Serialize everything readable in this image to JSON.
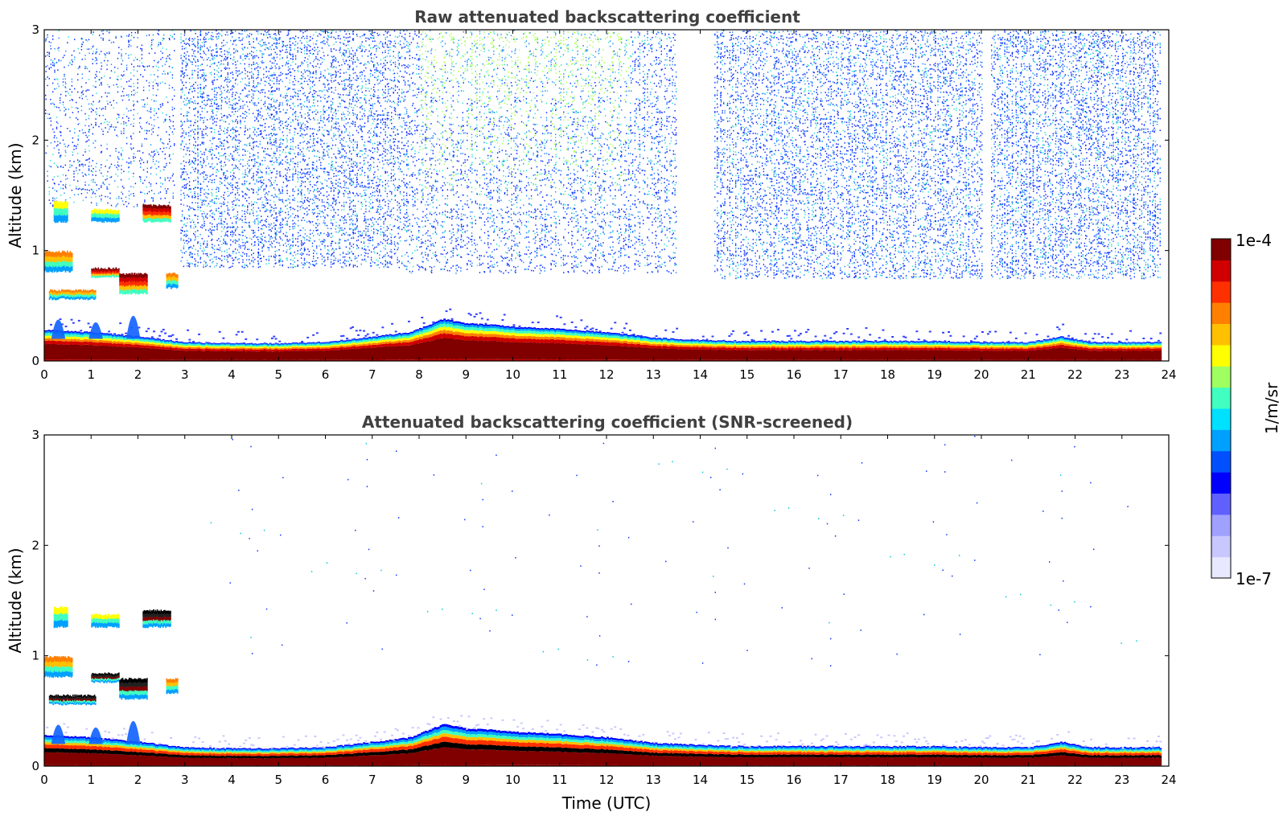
{
  "chart_data": [
    {
      "type": "heatmap",
      "title": "Raw attenuated backscattering coefficient",
      "xlabel": "",
      "ylabel": "Altitude (km)",
      "xlim": [
        0,
        24
      ],
      "ylim": [
        0,
        3
      ],
      "x_ticks": [
        "0",
        "1",
        "2",
        "3",
        "4",
        "5",
        "6",
        "7",
        "8",
        "9",
        "10",
        "11",
        "12",
        "13",
        "14",
        "15",
        "16",
        "17",
        "18",
        "19",
        "20",
        "21",
        "22",
        "23",
        "24"
      ],
      "y_ticks": [
        "0",
        "1",
        "2",
        "3"
      ],
      "screened": false,
      "boundary_layer_top_km": [
        [
          0,
          0.28
        ],
        [
          1,
          0.26
        ],
        [
          2,
          0.22
        ],
        [
          3,
          0.17
        ],
        [
          4,
          0.16
        ],
        [
          5,
          0.16
        ],
        [
          6,
          0.17
        ],
        [
          7,
          0.22
        ],
        [
          7.8,
          0.26
        ],
        [
          8.5,
          0.38
        ],
        [
          9,
          0.34
        ],
        [
          9.5,
          0.33
        ],
        [
          10,
          0.31
        ],
        [
          11,
          0.29
        ],
        [
          12,
          0.26
        ],
        [
          13,
          0.21
        ],
        [
          14,
          0.19
        ],
        [
          15,
          0.18
        ],
        [
          16,
          0.18
        ],
        [
          17,
          0.18
        ],
        [
          18,
          0.18
        ],
        [
          19,
          0.18
        ],
        [
          20,
          0.17
        ],
        [
          21,
          0.17
        ],
        [
          21.7,
          0.22
        ],
        [
          22.3,
          0.17
        ],
        [
          23,
          0.17
        ],
        [
          23.8,
          0.17
        ]
      ],
      "clouds": [
        {
          "t0": 0.0,
          "t1": 0.6,
          "alt0_km": 0.8,
          "alt1_km": 1.0,
          "level": "high"
        },
        {
          "t0": 0.2,
          "t1": 0.5,
          "alt0_km": 1.25,
          "alt1_km": 1.45,
          "level": "mid"
        },
        {
          "t0": 0.1,
          "t1": 1.1,
          "alt0_km": 0.55,
          "alt1_km": 0.65,
          "level": "high"
        },
        {
          "t0": 1.0,
          "t1": 1.6,
          "alt0_km": 0.75,
          "alt1_km": 0.85,
          "level": "max"
        },
        {
          "t0": 1.0,
          "t1": 1.6,
          "alt0_km": 1.25,
          "alt1_km": 1.38,
          "level": "mid"
        },
        {
          "t0": 1.6,
          "t1": 2.2,
          "alt0_km": 0.6,
          "alt1_km": 0.8,
          "level": "max"
        },
        {
          "t0": 2.1,
          "t1": 2.7,
          "alt0_km": 1.25,
          "alt1_km": 1.42,
          "level": "max"
        },
        {
          "t0": 2.6,
          "t1": 2.85,
          "alt0_km": 0.65,
          "alt1_km": 0.8,
          "level": "high"
        }
      ],
      "noise_regions": [
        {
          "t0": 0.0,
          "t1": 2.8,
          "alt0_km": 1.4,
          "density": 0.25
        },
        {
          "t0": 2.9,
          "t1": 7.7,
          "alt0_km": 0.85,
          "density": 0.75
        },
        {
          "t0": 7.7,
          "t1": 13.5,
          "alt0_km": 0.8,
          "density": 0.55
        },
        {
          "t0": 14.3,
          "t1": 20.0,
          "alt0_km": 0.75,
          "density": 0.75
        },
        {
          "t0": 20.2,
          "t1": 23.8,
          "alt0_km": 0.75,
          "density": 0.85
        }
      ]
    },
    {
      "type": "heatmap",
      "title": "Attenuated backscattering coefficient (SNR-screened)",
      "xlabel": "Time (UTC)",
      "ylabel": "Altitude (km)",
      "xlim": [
        0,
        24
      ],
      "ylim": [
        0,
        3
      ],
      "x_ticks": [
        "0",
        "1",
        "2",
        "3",
        "4",
        "5",
        "6",
        "7",
        "8",
        "9",
        "10",
        "11",
        "12",
        "13",
        "14",
        "15",
        "16",
        "17",
        "18",
        "19",
        "20",
        "21",
        "22",
        "23",
        "24"
      ],
      "y_ticks": [
        "0",
        "1",
        "2",
        "3"
      ],
      "screened": true,
      "boundary_layer_top_km": [
        [
          0,
          0.28
        ],
        [
          1,
          0.26
        ],
        [
          2,
          0.22
        ],
        [
          3,
          0.17
        ],
        [
          4,
          0.16
        ],
        [
          5,
          0.16
        ],
        [
          6,
          0.17
        ],
        [
          7,
          0.22
        ],
        [
          7.8,
          0.26
        ],
        [
          8.5,
          0.38
        ],
        [
          9,
          0.34
        ],
        [
          9.5,
          0.33
        ],
        [
          10,
          0.31
        ],
        [
          11,
          0.29
        ],
        [
          12,
          0.26
        ],
        [
          13,
          0.21
        ],
        [
          14,
          0.19
        ],
        [
          15,
          0.18
        ],
        [
          16,
          0.18
        ],
        [
          17,
          0.18
        ],
        [
          18,
          0.18
        ],
        [
          19,
          0.18
        ],
        [
          20,
          0.17
        ],
        [
          21,
          0.17
        ],
        [
          21.7,
          0.22
        ],
        [
          22.3,
          0.17
        ],
        [
          23,
          0.17
        ],
        [
          23.8,
          0.17
        ]
      ],
      "clouds": [
        {
          "t0": 0.0,
          "t1": 0.6,
          "alt0_km": 0.8,
          "alt1_km": 1.0,
          "level": "high"
        },
        {
          "t0": 0.2,
          "t1": 0.5,
          "alt0_km": 1.25,
          "alt1_km": 1.45,
          "level": "mid"
        },
        {
          "t0": 0.1,
          "t1": 1.1,
          "alt0_km": 0.55,
          "alt1_km": 0.65,
          "level": "black"
        },
        {
          "t0": 1.0,
          "t1": 1.6,
          "alt0_km": 0.75,
          "alt1_km": 0.85,
          "level": "black"
        },
        {
          "t0": 1.0,
          "t1": 1.6,
          "alt0_km": 1.25,
          "alt1_km": 1.38,
          "level": "mid"
        },
        {
          "t0": 1.6,
          "t1": 2.2,
          "alt0_km": 0.6,
          "alt1_km": 0.8,
          "level": "black"
        },
        {
          "t0": 2.1,
          "t1": 2.7,
          "alt0_km": 1.25,
          "alt1_km": 1.42,
          "level": "black"
        },
        {
          "t0": 2.6,
          "t1": 2.85,
          "alt0_km": 0.65,
          "alt1_km": 0.8,
          "level": "high"
        }
      ],
      "noise_regions": [
        {
          "t0": 3.5,
          "t1": 23.5,
          "alt0_km": 0.9,
          "density": 0.004
        }
      ]
    }
  ],
  "colorbar": {
    "label": "1/m/sr",
    "max_label": "1e-4",
    "min_label": "1e-7",
    "colors": [
      "#e8e8ff",
      "#c8c8ff",
      "#a0a0ff",
      "#6060ff",
      "#0000ff",
      "#0050ff",
      "#00a0ff",
      "#00e0ff",
      "#40ffc0",
      "#a0ff60",
      "#ffff00",
      "#ffc000",
      "#ff8000",
      "#ff3000",
      "#d00000",
      "#800000"
    ]
  }
}
